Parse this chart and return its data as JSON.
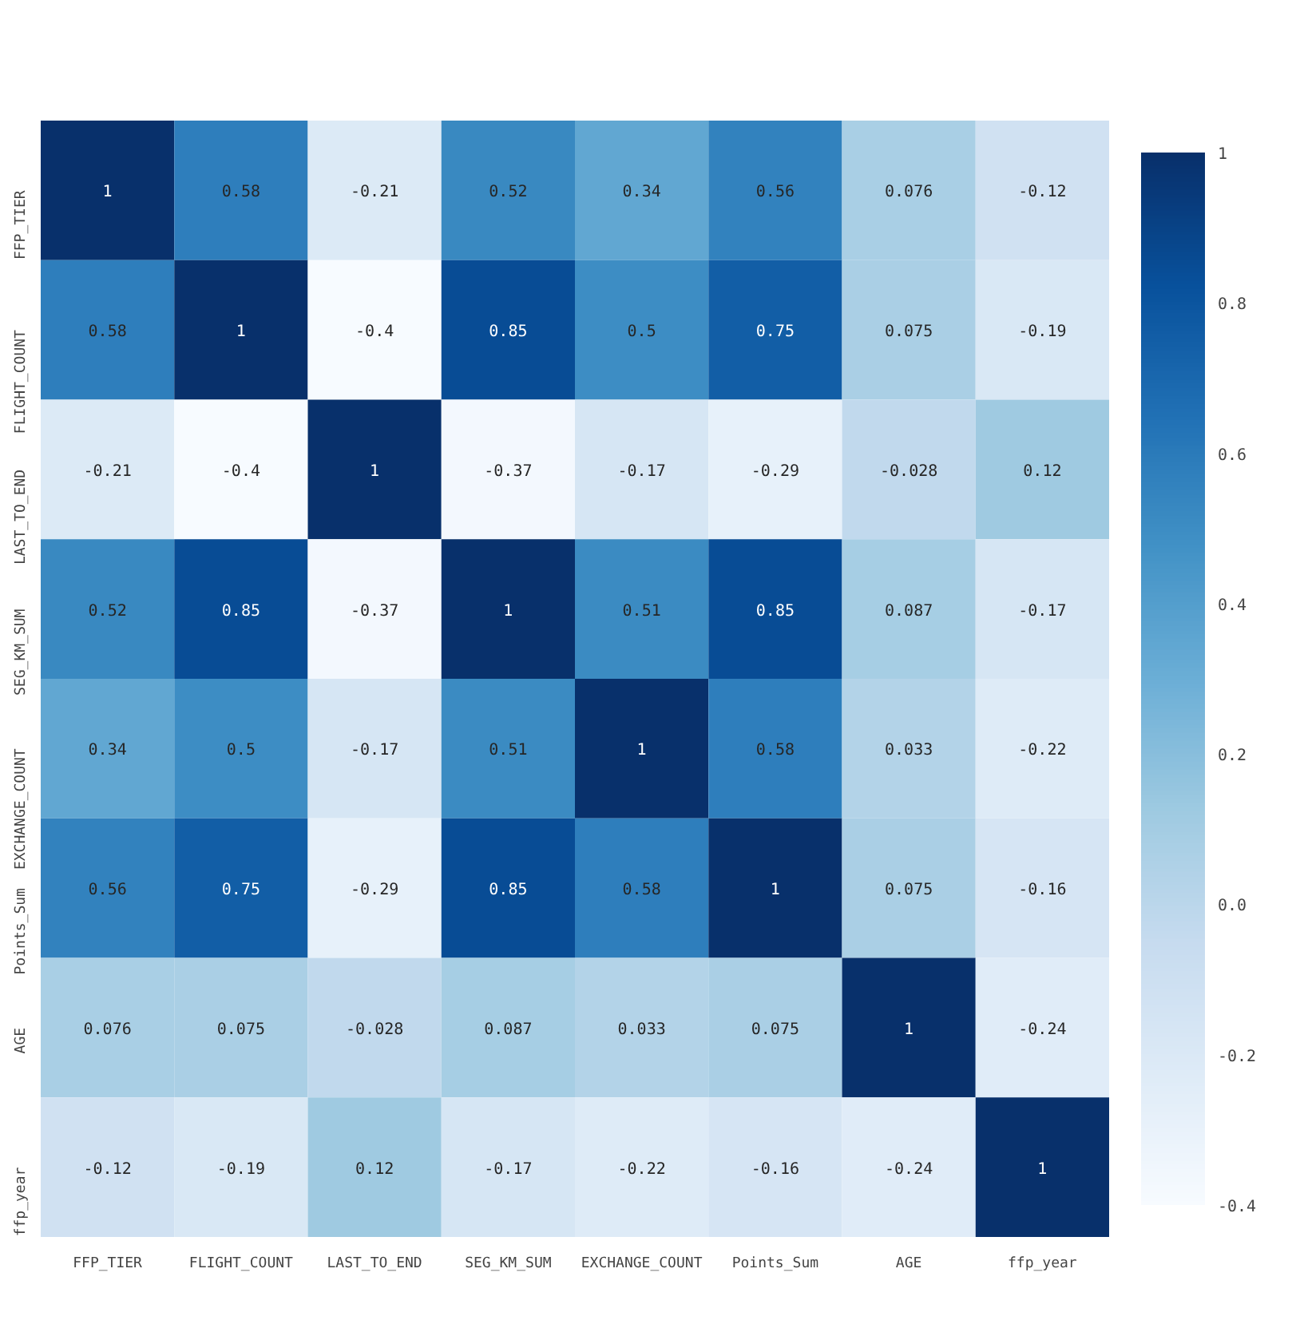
{
  "chart_data": {
    "type": "heatmap",
    "categories": [
      "FFP_TIER",
      "FLIGHT_COUNT",
      "LAST_TO_END",
      "SEG_KM_SUM",
      "EXCHANGE_COUNT",
      "Points_Sum",
      "AGE",
      "ffp_year"
    ],
    "y_categories": [
      "FFP_TIER",
      "FLIGHT_COUNT",
      "LAST_TO_END",
      "SEG_KM_SUM",
      "EXCHANGE_COUNT",
      "Points_Sum",
      "AGE",
      "ffp_year"
    ],
    "cells": [
      [
        1,
        0.58,
        -0.21,
        0.52,
        0.34,
        0.56,
        0.076,
        -0.12
      ],
      [
        0.58,
        1,
        -0.4,
        0.85,
        0.5,
        0.75,
        0.075,
        -0.19
      ],
      [
        -0.21,
        -0.4,
        1,
        -0.37,
        -0.17,
        -0.29,
        -0.028,
        0.12
      ],
      [
        0.52,
        0.85,
        -0.37,
        1,
        0.51,
        0.85,
        0.087,
        -0.17
      ],
      [
        0.34,
        0.5,
        -0.17,
        0.51,
        1,
        0.58,
        0.033,
        -0.22
      ],
      [
        0.56,
        0.75,
        -0.29,
        0.85,
        0.58,
        1,
        0.075,
        -0.16
      ],
      [
        0.076,
        0.075,
        -0.028,
        0.087,
        0.033,
        0.075,
        1,
        -0.24
      ],
      [
        -0.12,
        -0.19,
        0.12,
        -0.17,
        -0.22,
        -0.16,
        -0.24,
        1
      ]
    ],
    "data_labels": true,
    "clim": [
      -0.4,
      1.0
    ],
    "cticks": [
      -0.4,
      -0.2,
      {
        "value": 0,
        "label": "0.0"
      },
      0.2,
      0.4,
      0.6,
      0.8,
      1.0
    ],
    "grid": false
  }
}
